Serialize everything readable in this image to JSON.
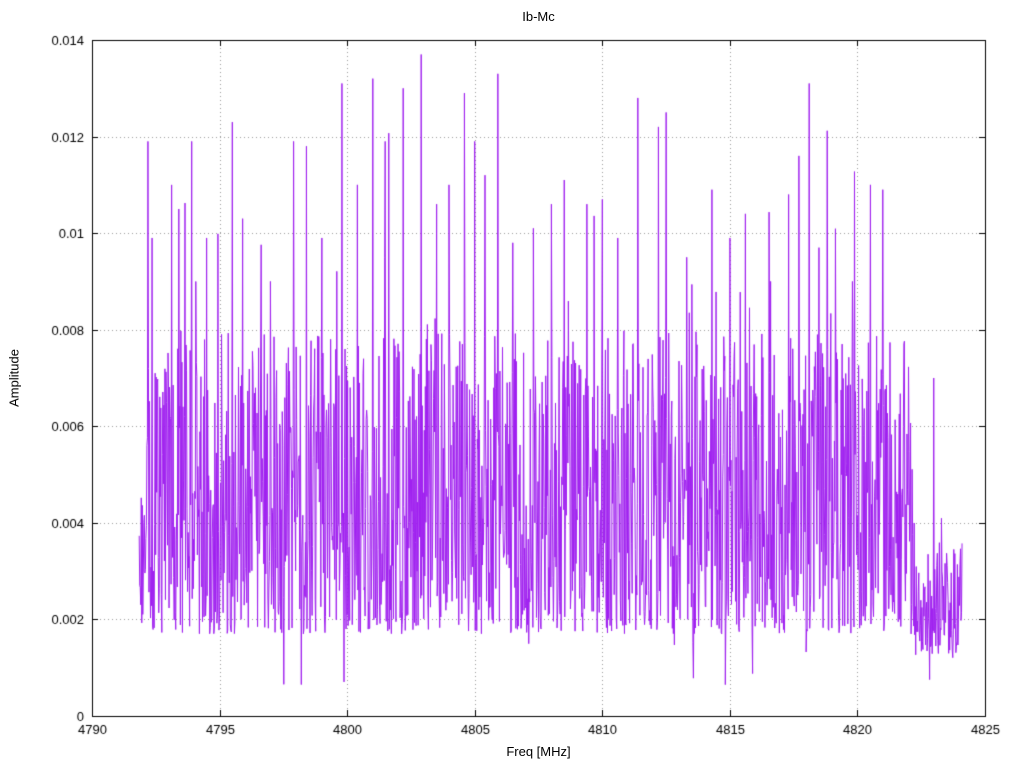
{
  "chart_data": {
    "type": "line",
    "title": "Ib-Mc",
    "xlabel": "Freq [MHz]",
    "ylabel": "Amplitude",
    "xlim": [
      4790,
      4825
    ],
    "ylim": [
      0,
      0.014
    ],
    "grid": true,
    "legend": "none",
    "xticks": [
      4790,
      4795,
      4800,
      4805,
      4810,
      4815,
      4820,
      4825
    ],
    "xtick_labels": [
      "4790",
      "4795",
      "4800",
      "4805",
      "4810",
      "4815",
      "4820",
      "4825"
    ],
    "yticks": [
      0,
      0.002,
      0.004,
      0.006,
      0.008,
      0.01,
      0.012,
      0.014
    ],
    "ytick_labels": [
      "0",
      "0.002",
      "0.004",
      "0.006",
      "0.008",
      "0.01",
      "0.012",
      "0.014"
    ],
    "line_color": "#a020f0",
    "grid_color": "#9a9a9a",
    "axis_color": "#000000",
    "series": [
      {
        "name": "Ib-Mc",
        "signal": {
          "x_start": 4791.85,
          "x_end": 4824.1,
          "n_points": 1600,
          "seed": 20,
          "noise_base": 0.0017,
          "noise_span": 0.0063,
          "noise_exp": 1.35,
          "spike_prob": 0.05,
          "spike_extra": 0.0048,
          "dip_prob": 0.01,
          "head_end": 4792.1,
          "tail_start": 4822.2,
          "tail_cap": 0.0042
        },
        "peaks": [
          [
            4792.2,
            0.0119
          ],
          [
            4792.35,
            0.0099
          ],
          [
            4793.4,
            0.0105
          ],
          [
            4793.9,
            0.0119
          ],
          [
            4794.5,
            0.0099
          ],
          [
            4795.5,
            0.0123
          ],
          [
            4795.9,
            0.0103
          ],
          [
            4797.0,
            0.009
          ],
          [
            4797.9,
            0.0119
          ],
          [
            4798.4,
            0.0118
          ],
          [
            4799.0,
            0.0099
          ],
          [
            4799.8,
            0.0131
          ],
          [
            4800.4,
            0.011
          ],
          [
            4801.0,
            0.0132
          ],
          [
            4801.5,
            0.0119
          ],
          [
            4802.2,
            0.013
          ],
          [
            4802.9,
            0.0137
          ],
          [
            4803.5,
            0.0106
          ],
          [
            4804.0,
            0.011
          ],
          [
            4804.6,
            0.0129
          ],
          [
            4805.0,
            0.0119
          ],
          [
            4805.4,
            0.0112
          ],
          [
            4805.9,
            0.0133
          ],
          [
            4806.5,
            0.0098
          ],
          [
            4807.3,
            0.0101
          ],
          [
            4808.0,
            0.0106
          ],
          [
            4808.5,
            0.0111
          ],
          [
            4809.4,
            0.0106
          ],
          [
            4810.0,
            0.0107
          ],
          [
            4810.6,
            0.0099
          ],
          [
            4811.4,
            0.0128
          ],
          [
            4812.2,
            0.0122
          ],
          [
            4812.5,
            0.0125
          ],
          [
            4813.3,
            0.0095
          ],
          [
            4814.3,
            0.0109
          ],
          [
            4815.0,
            0.0099
          ],
          [
            4815.6,
            0.0104
          ],
          [
            4816.6,
            0.009
          ],
          [
            4817.3,
            0.0108
          ],
          [
            4817.7,
            0.0116
          ],
          [
            4818.1,
            0.0131
          ],
          [
            4818.5,
            0.0097
          ],
          [
            4819.8,
            0.009
          ],
          [
            4820.5,
            0.011
          ],
          [
            4821.0,
            0.0109
          ],
          [
            4823.0,
            0.007
          ]
        ]
      }
    ]
  }
}
